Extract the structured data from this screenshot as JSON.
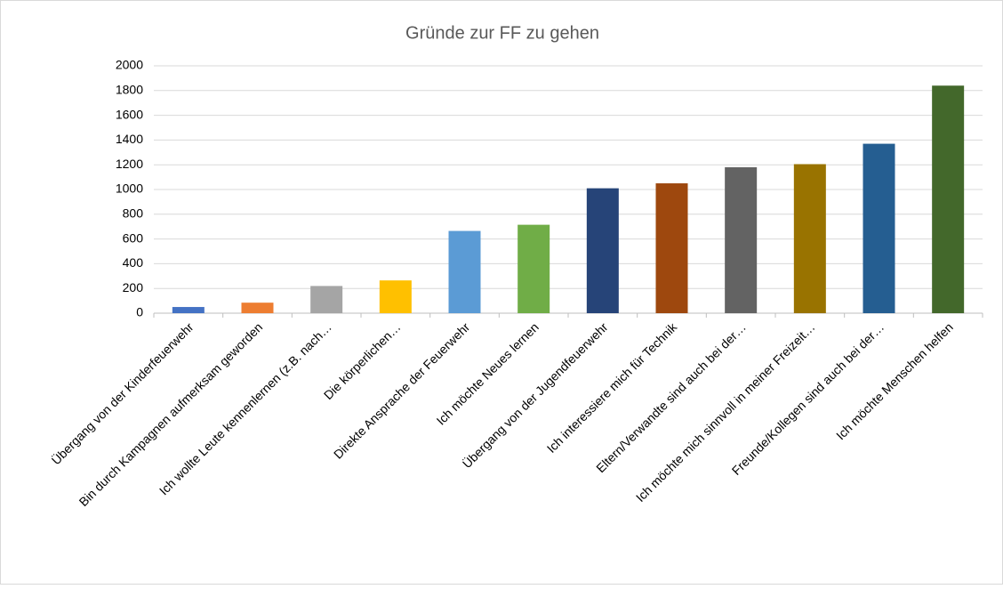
{
  "chart_data": {
    "type": "bar",
    "title": "Gründe zur FF zu gehen",
    "categories": [
      "Übergang von der Kinderfeuerwehr",
      "Bin durch Kampagnen aufmerksam geworden",
      "Ich wollte Leute kennenlernen (z.B. nach…",
      "Die körperlichen…",
      "Direkte Ansprache der Feuerwehr",
      "Ich möchte Neues lernen",
      "Übergang von der Jugendfeuerwehr",
      "Ich interessiere mich für Technik",
      "Eltern/Verwandte sind auch bei der…",
      "Ich möchte mich sinnvoll in meiner Freizeit…",
      "Freunde/Kollegen sind auch bei der…",
      "Ich möchte Menschen helfen"
    ],
    "values": [
      50,
      85,
      220,
      265,
      665,
      715,
      1010,
      1050,
      1180,
      1205,
      1370,
      1840
    ],
    "colors": [
      "#4472c4",
      "#ed7d31",
      "#a5a5a5",
      "#ffc000",
      "#5b9bd5",
      "#70ad47",
      "#264478",
      "#9e480e",
      "#636363",
      "#997300",
      "#255e91",
      "#43682b"
    ],
    "ylim": [
      0,
      2000
    ],
    "yticks": [
      0,
      200,
      400,
      600,
      800,
      1000,
      1200,
      1400,
      1600,
      1800,
      2000
    ],
    "grid": true
  }
}
